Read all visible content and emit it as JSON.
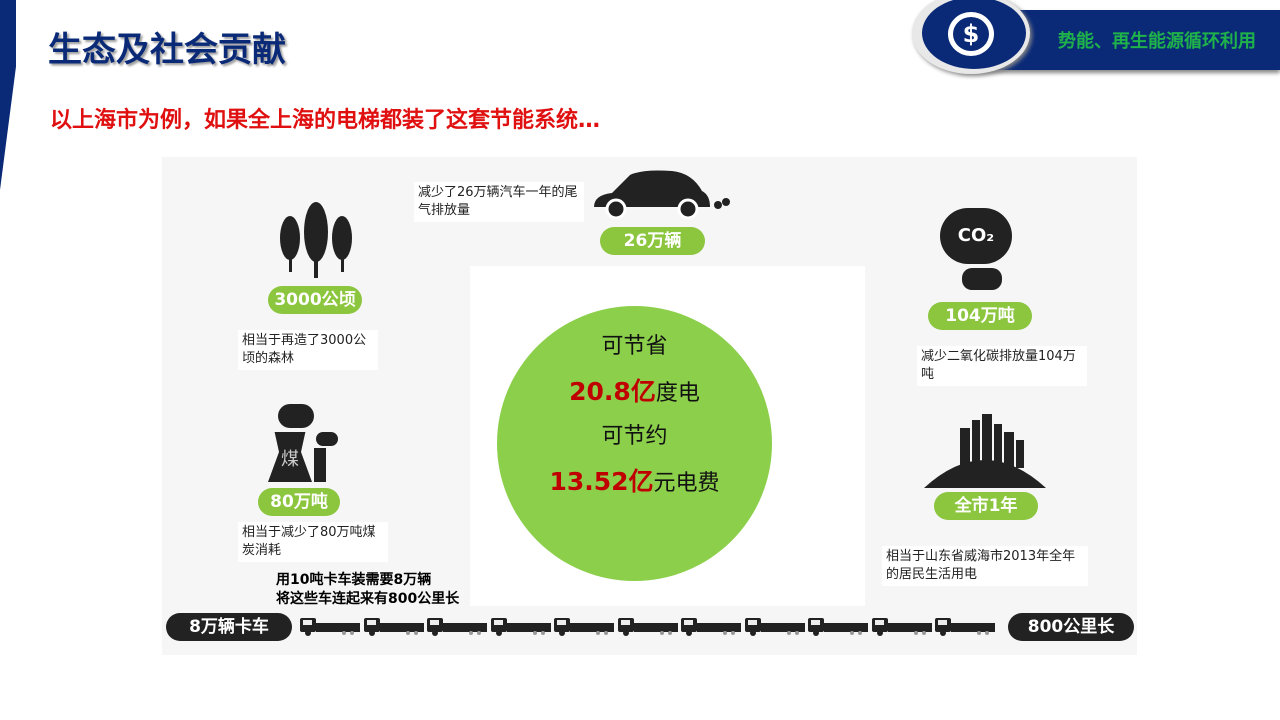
{
  "header": {
    "title": "生态及社会贡献",
    "subtitle": "以上海市为例，如果全上海的电梯都装了这套节能系统…",
    "banner": "势能、再生能源循环利用",
    "logo_symbol": "$"
  },
  "items": {
    "car": {
      "desc": "减少了26万辆汽车一年的尾气排放量",
      "badge": "26万辆",
      "icon": "car-icon"
    },
    "trees": {
      "desc": "相当于再造了3000公顷的森林",
      "badge": "3000公顷",
      "icon": "trees-icon"
    },
    "co2": {
      "desc": "减少二氧化碳排放量104万吨",
      "badge": "104万吨",
      "icon": "co2-cloud-icon",
      "icon_text": "CO₂"
    },
    "coal": {
      "desc": "相当于减少了80万吨煤炭消耗",
      "badge": "80万吨",
      "icon": "coal-plant-icon",
      "icon_text": "煤"
    },
    "city": {
      "desc": "相当于山东省威海市2013年全年的居民生活用电",
      "badge": "全市1年",
      "icon": "city-icon"
    }
  },
  "center": {
    "line1": "可节省",
    "value1": "20.8亿",
    "unit1": "度电",
    "line2": "可节约",
    "value2": "13.52亿",
    "unit2": "元电费"
  },
  "trucks": {
    "note1": "用10吨卡车装需要8万辆",
    "note2": "将这些车连起来有800公里长",
    "left": "8万辆卡车",
    "right": "800公里长"
  },
  "colors": {
    "navy": "#0a2a78",
    "green": "#8cc63f",
    "red": "#c00000"
  }
}
